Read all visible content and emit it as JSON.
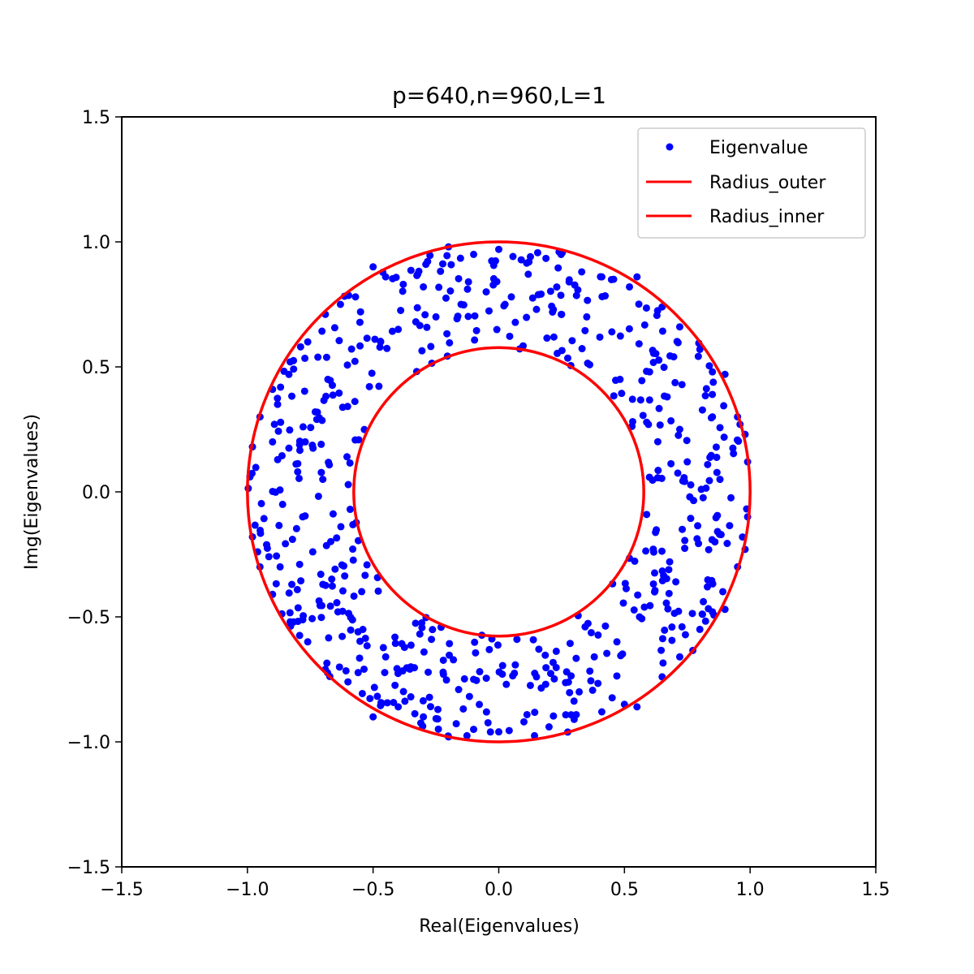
{
  "chart_data": {
    "type": "scatter",
    "title": "p=640,n=960,L=1",
    "xlabel": "Real(Eigenvalues)",
    "ylabel": "Img(Eigenvalues)",
    "xlim": [
      -1.5,
      1.5
    ],
    "ylim": [
      -1.5,
      1.5
    ],
    "xticks": [
      -1.5,
      -1.0,
      -0.5,
      0.0,
      0.5,
      1.0,
      1.5
    ],
    "yticks": [
      -1.5,
      -1.0,
      -0.5,
      0.0,
      0.5,
      1.0,
      1.5
    ],
    "xtick_labels": [
      "−1.5",
      "−1.0",
      "−0.5",
      "0.0",
      "0.5",
      "1.0",
      "1.5"
    ],
    "ytick_labels": [
      "−1.5",
      "−1.0",
      "−0.5",
      "0.0",
      "0.5",
      "1.0",
      "1.5"
    ],
    "grid": false,
    "legend": {
      "placement": "top-right",
      "entries": [
        "Eigenvalue",
        "Radius_outer",
        "Radius_inner"
      ]
    },
    "colors": {
      "points": "#0000ff",
      "circles": "#ff0000"
    },
    "circles": [
      {
        "name": "Radius_outer",
        "radius": 1.0
      },
      {
        "name": "Radius_inner",
        "radius": 0.577
      }
    ],
    "series": [
      {
        "name": "Eigenvalue",
        "count": 640,
        "points": [
          [
            -0.5,
            0.9
          ],
          [
            -0.45,
            0.86
          ],
          [
            -0.38,
            0.83
          ],
          [
            -0.29,
            0.91
          ],
          [
            -0.2,
            0.98
          ],
          [
            -0.1,
            0.95
          ],
          [
            0.0,
            0.97
          ],
          [
            0.12,
            0.92
          ],
          [
            0.24,
            0.96
          ],
          [
            0.33,
            0.88
          ],
          [
            0.41,
            0.86
          ],
          [
            0.52,
            0.82
          ],
          [
            0.55,
            0.86
          ],
          [
            -0.69,
            0.71
          ],
          [
            -0.63,
            0.75
          ],
          [
            -0.57,
            0.78
          ],
          [
            -0.76,
            0.6
          ],
          [
            -0.83,
            0.52
          ],
          [
            -0.9,
            0.41
          ],
          [
            -0.95,
            0.3
          ],
          [
            -0.98,
            0.18
          ],
          [
            -0.99,
            0.06
          ],
          [
            -0.98,
            -0.18
          ],
          [
            -0.95,
            -0.3
          ],
          [
            -0.9,
            -0.41
          ],
          [
            -0.83,
            -0.52
          ],
          [
            -0.76,
            -0.6
          ],
          [
            -0.69,
            -0.71
          ],
          [
            -0.6,
            -0.76
          ],
          [
            -0.5,
            -0.9
          ],
          [
            -0.4,
            -0.86
          ],
          [
            -0.3,
            -0.9
          ],
          [
            -0.2,
            -0.98
          ],
          [
            -0.1,
            -0.95
          ],
          [
            0.0,
            -0.96
          ],
          [
            0.1,
            -0.92
          ],
          [
            0.2,
            -0.94
          ],
          [
            0.3,
            -0.91
          ],
          [
            0.41,
            -0.88
          ],
          [
            0.5,
            -0.85
          ],
          [
            0.55,
            -0.86
          ],
          [
            0.65,
            -0.74
          ],
          [
            0.72,
            -0.66
          ],
          [
            0.8,
            -0.55
          ],
          [
            0.85,
            -0.48
          ],
          [
            0.9,
            -0.47
          ],
          [
            0.95,
            -0.3
          ],
          [
            0.98,
            -0.23
          ],
          [
            0.99,
            -0.1
          ],
          [
            0.99,
            0.12
          ],
          [
            0.98,
            0.23
          ],
          [
            0.95,
            0.3
          ],
          [
            0.9,
            0.47
          ],
          [
            0.85,
            0.48
          ],
          [
            0.8,
            0.57
          ],
          [
            0.72,
            0.66
          ],
          [
            0.65,
            0.74
          ],
          [
            -0.55,
            0.72
          ],
          [
            -0.47,
            0.6
          ],
          [
            -0.4,
            0.65
          ],
          [
            -0.33,
            0.68
          ],
          [
            -0.25,
            0.7
          ],
          [
            -0.15,
            0.75
          ],
          [
            -0.05,
            0.8
          ],
          [
            0.05,
            0.78
          ],
          [
            0.15,
            0.73
          ],
          [
            0.25,
            0.71
          ],
          [
            0.35,
            0.7
          ],
          [
            0.45,
            0.64
          ],
          [
            -0.68,
            0.45
          ],
          [
            -0.73,
            0.32
          ],
          [
            -0.77,
            0.2
          ],
          [
            -0.8,
            0.08
          ],
          [
            -0.78,
            -0.1
          ],
          [
            -0.74,
            -0.24
          ],
          [
            -0.7,
            -0.37
          ],
          [
            -0.64,
            -0.48
          ],
          [
            -0.56,
            -0.56
          ],
          [
            -0.45,
            -0.66
          ],
          [
            -0.35,
            -0.7
          ],
          [
            -0.22,
            -0.73
          ],
          [
            -0.1,
            -0.75
          ],
          [
            0.03,
            -0.77
          ],
          [
            0.15,
            -0.74
          ],
          [
            0.27,
            -0.72
          ],
          [
            0.38,
            -0.66
          ],
          [
            0.47,
            -0.6
          ],
          [
            0.56,
            -0.5
          ],
          [
            0.62,
            -0.4
          ],
          [
            0.68,
            -0.28
          ],
          [
            0.73,
            -0.15
          ],
          [
            0.76,
            -0.02
          ],
          [
            0.75,
            0.12
          ],
          [
            0.72,
            0.25
          ],
          [
            0.67,
            0.38
          ],
          [
            0.6,
            0.48
          ],
          [
            -0.9,
            0.2
          ],
          [
            -0.88,
            0.35
          ],
          [
            -0.86,
            -0.05
          ],
          [
            -0.87,
            -0.3
          ],
          [
            0.88,
            0.05
          ],
          [
            0.86,
            -0.2
          ],
          [
            0.85,
            0.3
          ],
          [
            0.83,
            -0.38
          ],
          [
            -0.3,
            0.82
          ],
          [
            0.28,
            0.84
          ],
          [
            -0.35,
            -0.82
          ],
          [
            0.32,
            -0.8
          ]
        ]
      }
    ]
  }
}
